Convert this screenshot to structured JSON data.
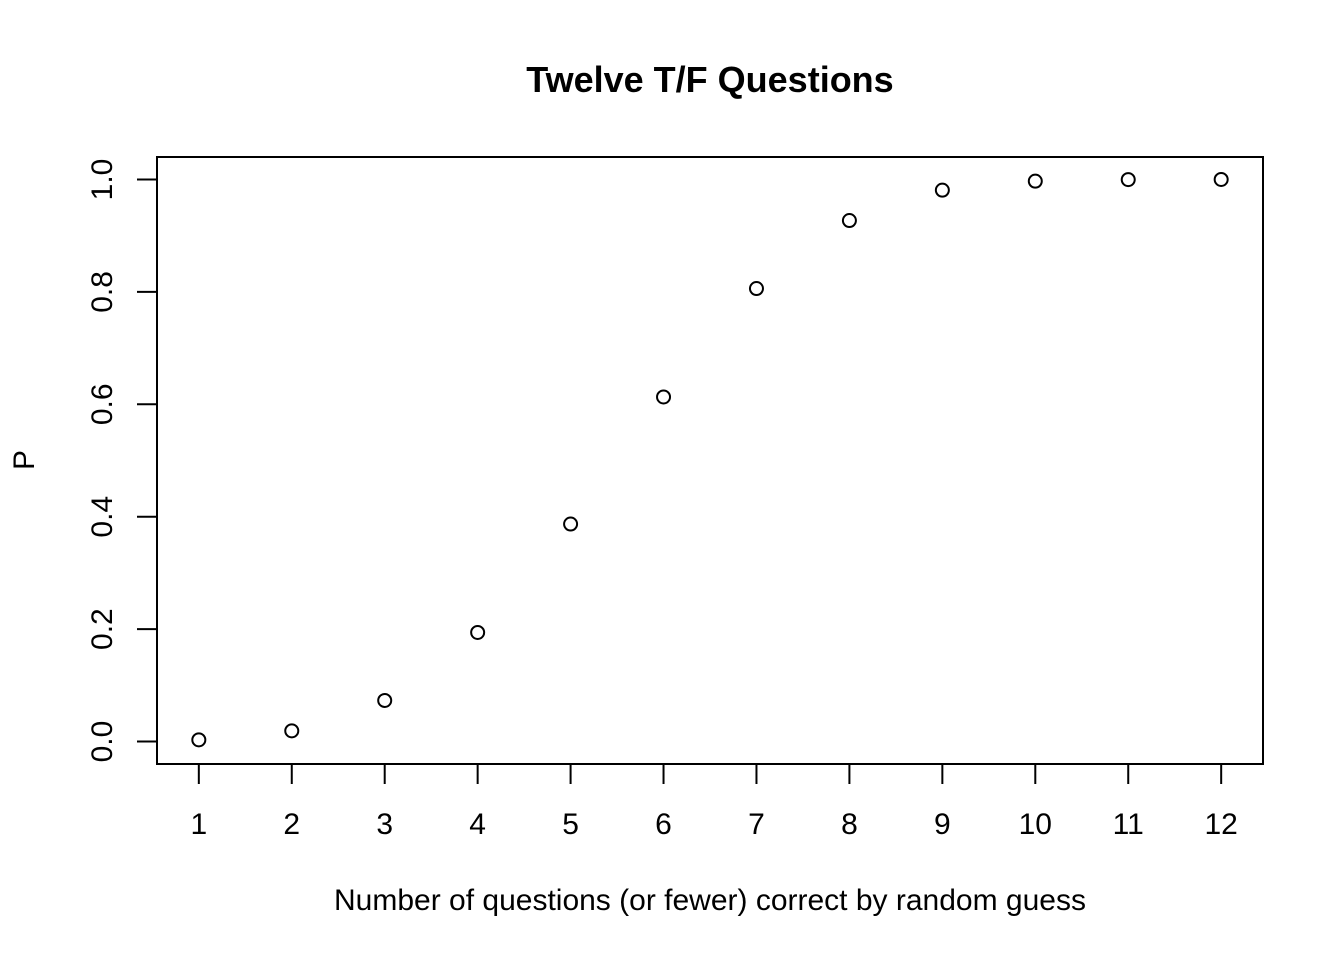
{
  "chart_data": {
    "type": "scatter",
    "title": "Twelve T/F Questions",
    "xlabel": "Number of questions (or fewer) correct by random guess",
    "ylabel": "P",
    "x": [
      1,
      2,
      3,
      4,
      5,
      6,
      7,
      8,
      9,
      10,
      11,
      12
    ],
    "y": [
      0.003,
      0.019,
      0.073,
      0.194,
      0.387,
      0.613,
      0.806,
      0.927,
      0.981,
      0.997,
      0.9998,
      1.0
    ],
    "xlim": [
      0.55,
      12.45
    ],
    "ylim": [
      -0.04,
      1.04
    ],
    "xticks": [
      "1",
      "2",
      "3",
      "4",
      "5",
      "6",
      "7",
      "8",
      "9",
      "10",
      "11",
      "12"
    ],
    "yticks": [
      "0.0",
      "0.2",
      "0.4",
      "0.6",
      "0.8",
      "1.0"
    ],
    "marker": "open-circle",
    "grid": false,
    "legend": "none",
    "colors": {
      "points": "#000000",
      "axes": "#000000",
      "background": "#ffffff"
    }
  }
}
